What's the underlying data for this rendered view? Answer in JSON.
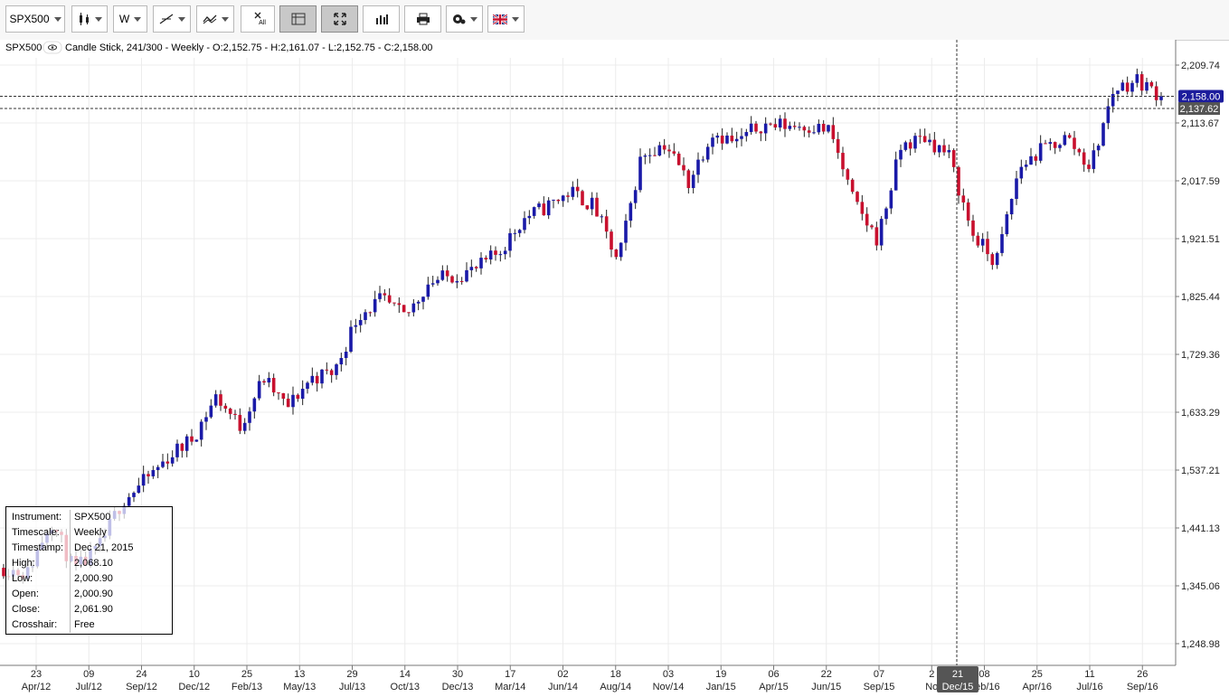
{
  "toolbar": {
    "instrument": "SPX500",
    "timescale_label": "W",
    "icons": [
      "candlestick-icon",
      "trendline-icon",
      "indicator-icon",
      "remove-all-icon",
      "crosshair-grid-icon",
      "fullscreen-icon",
      "bar-chart-icon",
      "print-icon",
      "settings-icon",
      "uk-flag-icon"
    ],
    "remove_all_label": "All"
  },
  "header": {
    "instrument": "SPX500",
    "description": "Candle Stick, 241/300 - Weekly - O:2,152.75 - H:2,161.07 - L:2,152.75 - C:2,158.00"
  },
  "price_axis": {
    "ticks": [
      "2,209.74",
      "2,113.67",
      "2,017.59",
      "1,921.51",
      "1,825.44",
      "1,729.36",
      "1,633.29",
      "1,537.21",
      "1,441.13",
      "1,345.06",
      "1,248.98"
    ],
    "current_price": "2,158.00",
    "crosshair_price": "2,137.62"
  },
  "time_axis": {
    "ticks": [
      {
        "day": "23",
        "month": "Apr/12"
      },
      {
        "day": "09",
        "month": "Jul/12"
      },
      {
        "day": "24",
        "month": "Sep/12"
      },
      {
        "day": "10",
        "month": "Dec/12"
      },
      {
        "day": "25",
        "month": "Feb/13"
      },
      {
        "day": "13",
        "month": "May/13"
      },
      {
        "day": "29",
        "month": "Jul/13"
      },
      {
        "day": "14",
        "month": "Oct/13"
      },
      {
        "day": "30",
        "month": "Dec/13"
      },
      {
        "day": "17",
        "month": "Mar/14"
      },
      {
        "day": "02",
        "month": "Jun/14"
      },
      {
        "day": "18",
        "month": "Aug/14"
      },
      {
        "day": "03",
        "month": "Nov/14"
      },
      {
        "day": "19",
        "month": "Jan/15"
      },
      {
        "day": "06",
        "month": "Apr/15"
      },
      {
        "day": "22",
        "month": "Jun/15"
      },
      {
        "day": "07",
        "month": "Sep/15"
      },
      {
        "day": "2",
        "month": "No"
      },
      {
        "day": "08",
        "month": "Feb/16"
      },
      {
        "day": "25",
        "month": "Apr/16"
      },
      {
        "day": "11",
        "month": "Jul/16"
      },
      {
        "day": "26",
        "month": "Sep/16"
      }
    ],
    "crosshair_day": "21",
    "crosshair_month": "Dec/15"
  },
  "info_panel": [
    {
      "key": "Instrument:",
      "value": "SPX500"
    },
    {
      "key": "Timescale:",
      "value": "Weekly"
    },
    {
      "key": "Timestamp:",
      "value": "Dec 21, 2015"
    },
    {
      "key": "High:",
      "value": "2,068.10"
    },
    {
      "key": "Low:",
      "value": "2,000.90"
    },
    {
      "key": "Open:",
      "value": "2,000.90"
    },
    {
      "key": "Close:",
      "value": "2,061.90"
    },
    {
      "key": "Crosshair:",
      "value": "Free"
    }
  ],
  "colors": {
    "up": "#1a1aa8",
    "down": "#c8102e",
    "current_badge": "#1c1c9c",
    "crosshair_badge": "#555555"
  },
  "chart_data": {
    "type": "candlestick",
    "timescale": "Weekly",
    "ylim": [
      1220,
      2240
    ],
    "close_points": [
      [
        "Apr/12",
        1375
      ],
      [
        "Jul/12",
        1365
      ],
      [
        "Sep/12",
        1455
      ],
      [
        "Nov/12",
        1370
      ],
      [
        "Dec/12",
        1405
      ],
      [
        "Jan/13",
        1485
      ],
      [
        "Feb/13",
        1520
      ],
      [
        "Mar/13",
        1560
      ],
      [
        "Apr/13",
        1590
      ],
      [
        "May/13",
        1660
      ],
      [
        "Jun/13",
        1610
      ],
      [
        "Jul/13",
        1690
      ],
      [
        "Aug/13",
        1640
      ],
      [
        "Sep/13",
        1690
      ],
      [
        "Oct/13",
        1700
      ],
      [
        "Nov/13",
        1795
      ],
      [
        "Dec/13",
        1820
      ],
      [
        "Jan/14",
        1790
      ],
      [
        "Feb/14",
        1850
      ],
      [
        "Mar/14",
        1860
      ],
      [
        "Apr/14",
        1870
      ],
      [
        "May/14",
        1900
      ],
      [
        "Jun/14",
        1955
      ],
      [
        "Jul/14",
        1975
      ],
      [
        "Aug/14",
        2000
      ],
      [
        "Sep/14",
        1975
      ],
      [
        "Oct/14",
        1880
      ],
      [
        "Nov/14",
        2060
      ],
      [
        "Dec/14",
        2080
      ],
      [
        "Jan/15",
        2015
      ],
      [
        "Feb/15",
        2100
      ],
      [
        "Mar/15",
        2080
      ],
      [
        "Apr/15",
        2110
      ],
      [
        "May/15",
        2110
      ],
      [
        "Jun/15",
        2110
      ],
      [
        "Jul/15",
        2100
      ],
      [
        "Aug/15",
        1980
      ],
      [
        "Sep/15",
        1920
      ],
      [
        "Oct/15",
        2075
      ],
      [
        "Nov/15",
        2090
      ],
      [
        "Dec/15",
        2060
      ],
      [
        "Jan/16",
        1930
      ],
      [
        "Feb/16",
        1880
      ],
      [
        "Mar/16",
        2040
      ],
      [
        "Apr/16",
        2070
      ],
      [
        "May/16",
        2090
      ],
      [
        "Jun/16",
        2040
      ],
      [
        "Jul/16",
        2170
      ],
      [
        "Aug/16",
        2185
      ],
      [
        "Sep/16",
        2158
      ]
    ]
  }
}
